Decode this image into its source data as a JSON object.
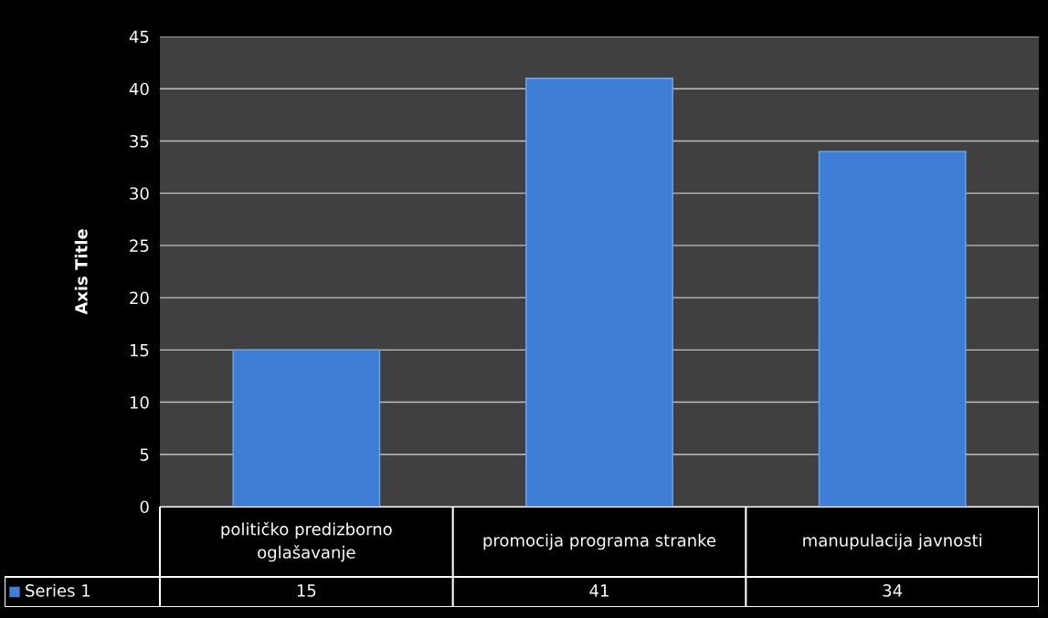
{
  "chart_data": {
    "type": "bar",
    "ylabel": "Axis Title",
    "categories": [
      "političko predizborno oglašavanje",
      "promocija programa stranke",
      "manupulacija javnosti"
    ],
    "series": [
      {
        "name": "Series 1",
        "color": "#3f7ed6",
        "values": [
          15,
          41,
          34
        ]
      }
    ],
    "ylim": [
      0,
      45
    ],
    "yticks": [
      0,
      5,
      10,
      15,
      20,
      25,
      30,
      35,
      40,
      45
    ],
    "grid": "y",
    "data_labels": true,
    "legend": "bottom"
  }
}
